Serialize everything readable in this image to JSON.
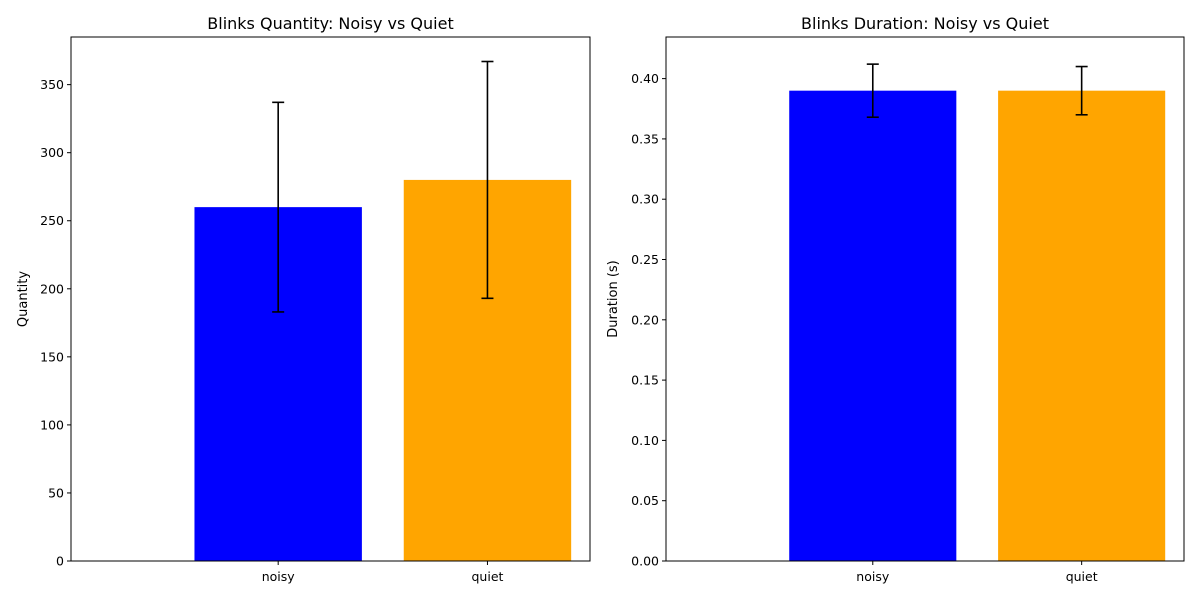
{
  "chart_data": [
    {
      "type": "bar",
      "title": "Blinks Quantity: Noisy vs Quiet",
      "xlabel": "",
      "ylabel": "Quantity",
      "categories": [
        "noisy",
        "quiet"
      ],
      "values": [
        260,
        280
      ],
      "error": [
        77,
        87
      ],
      "colors": [
        "#0000ff",
        "#ffa500"
      ],
      "ylim": [
        0,
        385
      ],
      "yticks": [
        0,
        50,
        100,
        150,
        200,
        250,
        300,
        350
      ],
      "ytick_labels": [
        "0",
        "50",
        "100",
        "150",
        "200",
        "250",
        "300",
        "350"
      ],
      "grid": false
    },
    {
      "type": "bar",
      "title": "Blinks Duration: Noisy vs Quiet",
      "xlabel": "",
      "ylabel": "Duration (s)",
      "categories": [
        "noisy",
        "quiet"
      ],
      "values": [
        0.39,
        0.39
      ],
      "error": [
        0.022,
        0.02
      ],
      "colors": [
        "#0000ff",
        "#ffa500"
      ],
      "ylim": [
        0,
        0.4345
      ],
      "yticks": [
        0,
        0.05,
        0.1,
        0.15,
        0.2,
        0.25,
        0.3,
        0.35,
        0.4
      ],
      "ytick_labels": [
        "0.00",
        "0.05",
        "0.10",
        "0.15",
        "0.20",
        "0.25",
        "0.30",
        "0.35",
        "0.40"
      ],
      "grid": false
    }
  ]
}
